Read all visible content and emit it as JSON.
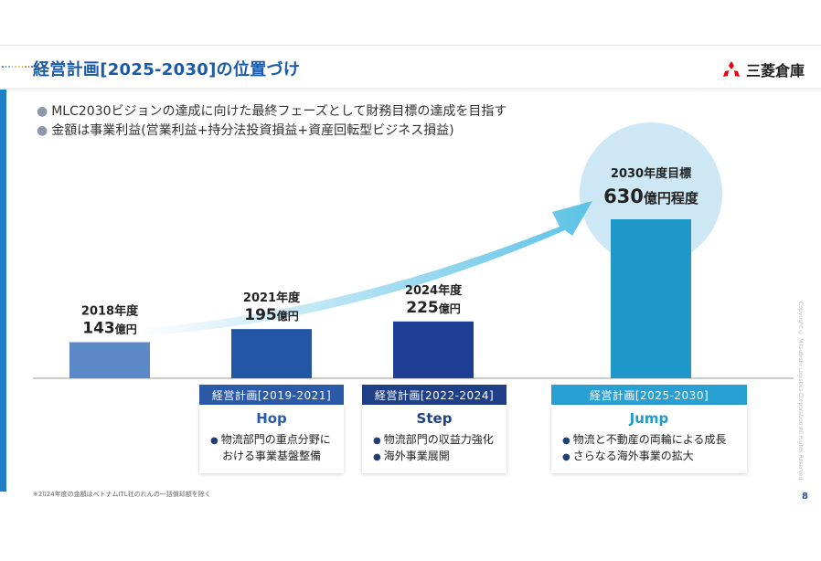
{
  "header": {
    "title": "経営計画[2025-2030]の位置づけ",
    "logo_text": "三菱倉庫",
    "logo_icon": "three-diamonds-icon",
    "dot_colors": [
      "#1e5aa8",
      "#2f77c0",
      "#46a0d8",
      "#7dc2e8",
      "#a9d46b",
      "#f2c23c",
      "#ef8a3a",
      "#e0533a",
      "#b8347a",
      "#6b3a9a"
    ]
  },
  "bullets": [
    "MLC2030ビジョンの達成に向けた最終フェーズとして財務目標の達成を目指す",
    "金額は事業利益(営業利益+持分法投資損益+資産回転型ビジネス損益)"
  ],
  "chart_data": {
    "type": "bar",
    "categories": [
      "2018年度",
      "2021年度",
      "2024年度",
      "2030年度目標"
    ],
    "values": [
      143,
      195,
      225,
      630
    ],
    "value_labels": [
      {
        "number": "143",
        "suffix": "億円"
      },
      {
        "number": "195",
        "suffix": "億円"
      },
      {
        "number": "225",
        "suffix": "億円"
      },
      {
        "number": "630",
        "suffix": "億円程度"
      }
    ],
    "colors": [
      "#5b88c7",
      "#2456a6",
      "#1f3f94",
      "#1f97c9"
    ],
    "target_highlight_color": "#cde8f4",
    "arrow_color": "#5cc2e6",
    "ylim": [
      0,
      650
    ]
  },
  "plans": [
    {
      "label": "経営計画[2019-2021]",
      "phase": "Hop",
      "items": [
        "物流部門の重点分野に",
        "おける事業基盤整備"
      ],
      "header_color": "#2a5aa8",
      "phase_color": "#2a5aa8"
    },
    {
      "label": "経営計画[2022-2024]",
      "phase": "Step",
      "items": [
        "物流部門の収益力強化",
        "海外事業展開"
      ],
      "header_color": "#1f3f88",
      "phase_color": "#1f3f88"
    },
    {
      "label": "経営計画[2025-2030]",
      "phase": "Jump",
      "items": [
        "物流と不動産の両輪による成長",
        "さらなる海外事業の拡大"
      ],
      "header_color": "#2aa0d2",
      "phase_color": "#1f9bcf"
    }
  ],
  "footnote": "※2024年度の金額はベトナムITL社のれんの一括償却額を除く",
  "page_number": "8",
  "copyright": "Copyright © Mitsubishi Logistics Corporation All Rights Reserved"
}
